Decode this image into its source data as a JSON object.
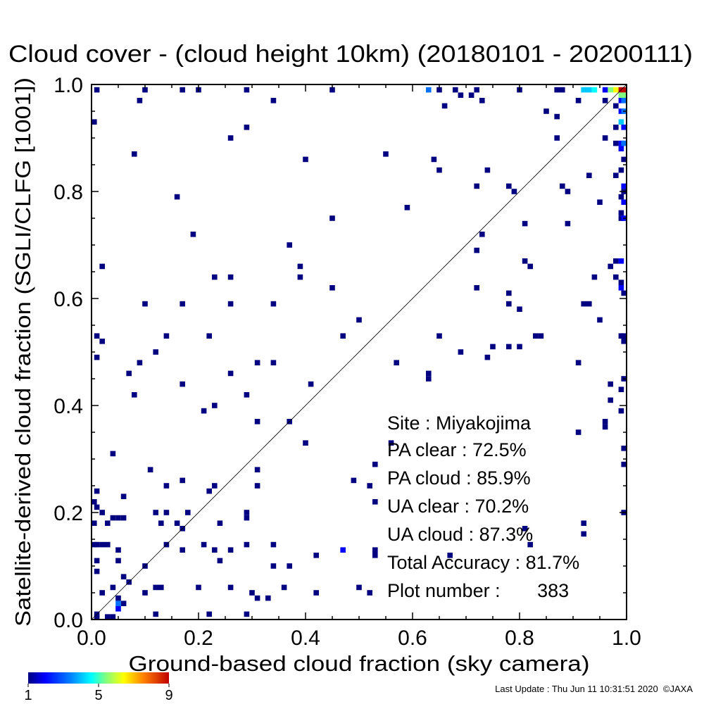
{
  "chart_data": {
    "type": "heatmap",
    "title": "Cloud cover - (cloud height 10km)  (20180101 - 20200111)",
    "xlabel": "Ground-based cloud fraction (sky camera)",
    "ylabel": "Satellite-derived cloud fraction (SGLI/CLFG [1001])",
    "xlim": [
      0.0,
      1.0
    ],
    "ylim": [
      0.0,
      1.0
    ],
    "xticks": [
      "0.0",
      "0.2",
      "0.4",
      "0.6",
      "0.8",
      "1.0"
    ],
    "yticks": [
      "0.0",
      "0.2",
      "0.4",
      "0.6",
      "0.8",
      "1.0"
    ],
    "diagonal_line": true,
    "grid": false,
    "colorbar": {
      "min": 1,
      "max": 9,
      "ticks": [
        "1",
        "5",
        "9"
      ],
      "colormap": "rainbow"
    },
    "stats": {
      "site": "Site : Miyakojima",
      "pa_clear": "PA clear :  72.5%",
      "pa_cloud": "PA cloud :  85.9%",
      "ua_clear": "UA clear :  70.2%",
      "ua_cloud": "UA cloud :  87.3%",
      "total_accuracy": "Total Accuracy :  81.7%",
      "plot_number": "Plot number :       383"
    },
    "cells": [
      [
        0.01,
        0.99,
        1
      ],
      [
        0.1,
        0.99,
        1
      ],
      [
        0.17,
        0.99,
        1
      ],
      [
        0.2,
        0.99,
        1
      ],
      [
        0.29,
        0.99,
        1
      ],
      [
        0.45,
        0.99,
        1
      ],
      [
        0.63,
        0.99,
        3
      ],
      [
        0.65,
        0.99,
        1
      ],
      [
        0.68,
        0.99,
        1
      ],
      [
        0.69,
        0.98,
        1
      ],
      [
        0.71,
        0.98,
        1
      ],
      [
        0.72,
        0.99,
        1
      ],
      [
        0.8,
        0.99,
        1
      ],
      [
        0.87,
        0.99,
        1
      ],
      [
        0.88,
        0.99,
        1
      ],
      [
        0.92,
        0.99,
        4
      ],
      [
        0.93,
        0.99,
        4
      ],
      [
        0.94,
        0.99,
        5
      ],
      [
        0.96,
        0.99,
        2
      ],
      [
        0.97,
        0.99,
        6
      ],
      [
        0.98,
        0.99,
        7
      ],
      [
        0.99,
        0.99,
        9
      ],
      [
        1.0,
        0.99,
        9
      ],
      [
        0.99,
        0.98,
        6
      ],
      [
        1.0,
        0.98,
        6
      ],
      [
        0.09,
        0.97,
        1
      ],
      [
        0.34,
        0.97,
        1
      ],
      [
        0.66,
        0.96,
        1
      ],
      [
        0.73,
        0.97,
        1
      ],
      [
        0.91,
        0.97,
        1
      ],
      [
        0.96,
        0.97,
        1
      ],
      [
        0.99,
        0.97,
        2
      ],
      [
        1.0,
        0.97,
        3
      ],
      [
        0.98,
        0.96,
        1
      ],
      [
        0.99,
        0.95,
        2
      ],
      [
        1.0,
        0.95,
        3
      ],
      [
        0.85,
        0.95,
        1
      ],
      [
        0.87,
        0.94,
        1
      ],
      [
        0.0,
        0.93,
        1
      ],
      [
        0.99,
        0.93,
        4
      ],
      [
        1.0,
        0.92,
        2
      ],
      [
        0.29,
        0.92,
        1
      ],
      [
        0.98,
        0.92,
        1
      ],
      [
        0.87,
        0.9,
        1
      ],
      [
        0.96,
        0.9,
        1
      ],
      [
        0.26,
        0.9,
        1
      ],
      [
        0.98,
        0.89,
        1
      ],
      [
        0.99,
        0.89,
        2
      ],
      [
        1.0,
        0.89,
        3
      ],
      [
        0.99,
        0.88,
        2
      ],
      [
        0.08,
        0.87,
        1
      ],
      [
        0.55,
        0.87,
        1
      ],
      [
        0.4,
        0.86,
        1
      ],
      [
        0.64,
        0.86,
        1
      ],
      [
        1.0,
        0.86,
        1
      ],
      [
        0.65,
        0.84,
        1
      ],
      [
        0.74,
        0.84,
        1
      ],
      [
        0.99,
        0.84,
        1
      ],
      [
        0.93,
        0.83,
        1
      ],
      [
        0.98,
        0.83,
        1
      ],
      [
        0.72,
        0.81,
        1
      ],
      [
        0.78,
        0.81,
        1
      ],
      [
        0.79,
        0.8,
        1
      ],
      [
        0.88,
        0.81,
        1
      ],
      [
        0.89,
        0.8,
        1
      ],
      [
        1.0,
        0.81,
        2
      ],
      [
        1.0,
        0.8,
        1
      ],
      [
        0.16,
        0.79,
        1
      ],
      [
        0.99,
        0.79,
        1
      ],
      [
        0.95,
        0.78,
        1
      ],
      [
        1.0,
        0.78,
        2
      ],
      [
        0.59,
        0.77,
        1
      ],
      [
        0.99,
        0.76,
        1
      ],
      [
        0.45,
        0.75,
        1
      ],
      [
        0.99,
        0.75,
        1
      ],
      [
        1.0,
        0.75,
        2
      ],
      [
        0.81,
        0.74,
        1
      ],
      [
        0.89,
        0.74,
        1
      ],
      [
        0.19,
        0.72,
        1
      ],
      [
        0.73,
        0.72,
        1
      ],
      [
        0.37,
        0.7,
        1
      ],
      [
        0.72,
        0.69,
        1
      ],
      [
        0.81,
        0.67,
        1
      ],
      [
        0.82,
        0.66,
        1
      ],
      [
        0.98,
        0.67,
        1
      ],
      [
        0.99,
        0.67,
        2
      ],
      [
        0.97,
        0.66,
        1
      ],
      [
        0.02,
        0.66,
        1
      ],
      [
        0.39,
        0.66,
        1
      ],
      [
        0.23,
        0.64,
        1
      ],
      [
        0.26,
        0.64,
        1
      ],
      [
        0.39,
        0.64,
        1
      ],
      [
        0.94,
        0.64,
        1
      ],
      [
        0.98,
        0.64,
        1
      ],
      [
        0.99,
        0.63,
        1
      ],
      [
        0.45,
        0.62,
        1
      ],
      [
        0.72,
        0.62,
        1
      ],
      [
        0.99,
        0.62,
        2
      ],
      [
        1.0,
        0.61,
        1
      ],
      [
        0.78,
        0.61,
        1
      ],
      [
        0.1,
        0.59,
        1
      ],
      [
        0.17,
        0.59,
        1
      ],
      [
        0.26,
        0.59,
        1
      ],
      [
        0.34,
        0.59,
        1
      ],
      [
        0.78,
        0.59,
        1
      ],
      [
        0.92,
        0.59,
        1
      ],
      [
        0.93,
        0.59,
        1
      ],
      [
        0.8,
        0.58,
        1
      ],
      [
        0.5,
        0.56,
        1
      ],
      [
        0.95,
        0.56,
        1
      ],
      [
        0.14,
        0.53,
        1
      ],
      [
        0.22,
        0.53,
        1
      ],
      [
        0.47,
        0.53,
        1
      ],
      [
        0.65,
        0.53,
        1
      ],
      [
        0.83,
        0.53,
        1
      ],
      [
        0.84,
        0.53,
        1
      ],
      [
        0.99,
        0.53,
        1
      ],
      [
        1.0,
        0.53,
        1
      ],
      [
        0.01,
        0.53,
        1
      ],
      [
        0.02,
        0.52,
        1
      ],
      [
        1.0,
        0.52,
        1
      ],
      [
        0.12,
        0.5,
        1
      ],
      [
        0.69,
        0.5,
        1
      ],
      [
        0.75,
        0.51,
        1
      ],
      [
        0.78,
        0.51,
        1
      ],
      [
        0.8,
        0.51,
        1
      ],
      [
        0.74,
        0.49,
        1
      ],
      [
        0.01,
        0.49,
        1
      ],
      [
        0.09,
        0.48,
        1
      ],
      [
        0.31,
        0.48,
        1
      ],
      [
        0.34,
        0.48,
        1
      ],
      [
        0.57,
        0.48,
        1
      ],
      [
        0.91,
        0.48,
        1
      ],
      [
        0.07,
        0.46,
        1
      ],
      [
        0.26,
        0.46,
        1
      ],
      [
        0.63,
        0.46,
        1
      ],
      [
        0.63,
        0.45,
        1
      ],
      [
        1.0,
        0.45,
        1
      ],
      [
        0.17,
        0.44,
        1
      ],
      [
        0.41,
        0.44,
        1
      ],
      [
        0.97,
        0.44,
        1
      ],
      [
        0.99,
        0.43,
        1
      ],
      [
        0.08,
        0.42,
        1
      ],
      [
        0.29,
        0.42,
        1
      ],
      [
        0.97,
        0.41,
        1
      ],
      [
        0.21,
        0.39,
        1
      ],
      [
        0.23,
        0.4,
        1
      ],
      [
        0.99,
        0.39,
        1
      ],
      [
        0.31,
        0.37,
        1
      ],
      [
        0.37,
        0.37,
        1
      ],
      [
        0.96,
        0.37,
        1
      ],
      [
        0.96,
        0.36,
        1
      ],
      [
        0.91,
        0.35,
        1
      ],
      [
        0.4,
        0.33,
        1
      ],
      [
        0.56,
        0.33,
        1
      ],
      [
        1.0,
        0.32,
        1
      ],
      [
        0.04,
        0.31,
        1
      ],
      [
        0.53,
        0.29,
        1
      ],
      [
        1.0,
        0.29,
        1
      ],
      [
        0.11,
        0.28,
        1
      ],
      [
        0.31,
        0.28,
        1
      ],
      [
        0.49,
        0.26,
        1
      ],
      [
        0.17,
        0.26,
        1
      ],
      [
        0.14,
        0.25,
        1
      ],
      [
        0.23,
        0.25,
        1
      ],
      [
        0.31,
        0.25,
        1
      ],
      [
        0.52,
        0.25,
        1
      ],
      [
        0.01,
        0.24,
        1
      ],
      [
        0.22,
        0.24,
        1
      ],
      [
        0.06,
        0.23,
        1
      ],
      [
        0.0,
        0.22,
        1
      ],
      [
        0.01,
        0.21,
        1
      ],
      [
        0.53,
        0.22,
        1
      ],
      [
        0.02,
        0.2,
        1
      ],
      [
        0.12,
        0.2,
        1
      ],
      [
        0.14,
        0.2,
        1
      ],
      [
        0.18,
        0.2,
        1
      ],
      [
        0.29,
        0.2,
        1
      ],
      [
        0.29,
        0.19,
        1
      ],
      [
        1.0,
        0.2,
        1
      ],
      [
        0.04,
        0.19,
        1
      ],
      [
        0.05,
        0.19,
        1
      ],
      [
        0.06,
        0.19,
        1
      ],
      [
        0.03,
        0.18,
        1
      ],
      [
        0.0,
        0.18,
        1
      ],
      [
        0.13,
        0.18,
        1
      ],
      [
        0.16,
        0.18,
        1
      ],
      [
        0.17,
        0.17,
        1
      ],
      [
        0.24,
        0.18,
        1
      ],
      [
        0.92,
        0.18,
        1
      ],
      [
        0.81,
        0.17,
        1
      ],
      [
        0.92,
        0.16,
        1
      ],
      [
        0.0,
        0.14,
        1
      ],
      [
        0.01,
        0.14,
        1
      ],
      [
        0.02,
        0.14,
        1
      ],
      [
        0.03,
        0.14,
        1
      ],
      [
        0.05,
        0.13,
        1
      ],
      [
        0.14,
        0.14,
        1
      ],
      [
        0.21,
        0.14,
        1
      ],
      [
        0.29,
        0.14,
        1
      ],
      [
        0.34,
        0.14,
        1
      ],
      [
        0.47,
        0.13,
        2
      ],
      [
        0.82,
        0.14,
        1
      ],
      [
        0.17,
        0.13,
        1
      ],
      [
        0.23,
        0.13,
        1
      ],
      [
        0.26,
        0.13,
        1
      ],
      [
        0.53,
        0.13,
        1
      ],
      [
        0.67,
        0.12,
        1
      ],
      [
        0.42,
        0.12,
        1
      ],
      [
        0.53,
        0.12,
        1
      ],
      [
        0.01,
        0.11,
        1
      ],
      [
        0.05,
        0.11,
        1
      ],
      [
        0.24,
        0.11,
        1
      ],
      [
        0.1,
        0.1,
        1
      ],
      [
        0.34,
        0.1,
        1
      ],
      [
        0.37,
        0.1,
        1
      ],
      [
        0.01,
        0.09,
        1
      ],
      [
        0.06,
        0.08,
        1
      ],
      [
        0.07,
        0.07,
        1
      ],
      [
        0.12,
        0.06,
        1
      ],
      [
        0.13,
        0.06,
        1
      ],
      [
        0.2,
        0.06,
        1
      ],
      [
        0.26,
        0.06,
        1
      ],
      [
        0.36,
        0.06,
        1
      ],
      [
        0.04,
        0.06,
        1
      ],
      [
        0.02,
        0.05,
        1
      ],
      [
        0.1,
        0.05,
        1
      ],
      [
        0.3,
        0.05,
        1
      ],
      [
        0.42,
        0.05,
        1
      ],
      [
        0.5,
        0.06,
        1
      ],
      [
        0.52,
        0.05,
        1
      ],
      [
        0.05,
        0.04,
        1
      ],
      [
        0.31,
        0.04,
        1
      ],
      [
        0.33,
        0.04,
        1
      ],
      [
        0.06,
        0.03,
        1
      ],
      [
        0.05,
        0.03,
        3
      ],
      [
        0.05,
        0.02,
        2
      ],
      [
        0.12,
        0.01,
        1
      ],
      [
        0.22,
        0.01,
        1
      ],
      [
        0.29,
        0.01,
        1
      ],
      [
        0.01,
        0.01,
        1
      ],
      [
        0.01,
        0.0,
        1
      ],
      [
        0.03,
        0.0,
        1
      ],
      [
        0.04,
        0.0,
        1
      ]
    ]
  },
  "footer": {
    "last_update": "Last Update : Thu Jun 11 10:31:51 2020  ©JAXA"
  }
}
